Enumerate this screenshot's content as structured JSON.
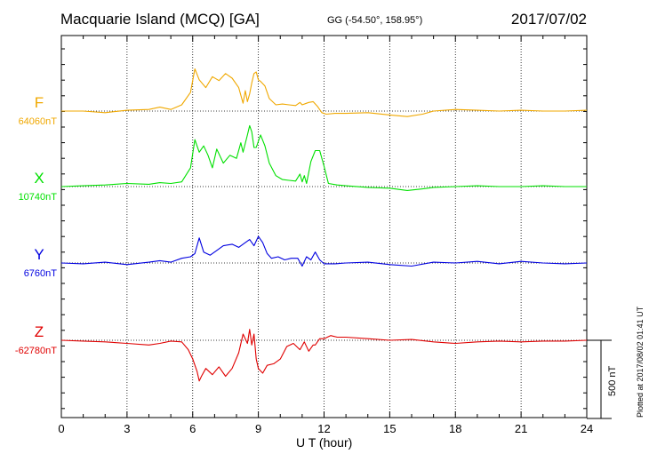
{
  "header": {
    "title": "Macquarie Island (MCQ)  [GA]",
    "coords": "GG (-54.50°, 158.95°)",
    "date": "2017/07/02"
  },
  "footer": {
    "plotted": "Plotted at 2017/08/02 01:41  UT",
    "scale_label": "500 nT"
  },
  "chart_data": {
    "type": "line",
    "xlabel": "U T (hour)",
    "xlim": [
      0,
      24
    ],
    "xticks": [
      "0",
      "3",
      "6",
      "9",
      "12",
      "15",
      "18",
      "21",
      "24"
    ],
    "grid": true,
    "series": [
      {
        "name": "F",
        "baseline": "64060nT",
        "color": "#F0A800",
        "x": [
          0,
          1,
          2,
          3,
          4,
          4.5,
          5,
          5.5,
          5.9,
          6.1,
          6.3,
          6.6,
          6.9,
          7.2,
          7.5,
          7.8,
          8.1,
          8.3,
          8.4,
          8.5,
          8.6,
          8.7,
          8.8,
          8.9,
          9.0,
          9.1,
          9.3,
          9.5,
          9.8,
          10.1,
          10.4,
          10.7,
          10.9,
          11.0,
          11.2,
          11.3,
          11.5,
          11.7,
          11.9,
          12.1,
          12.5,
          13,
          14,
          15,
          15.8,
          16.5,
          17,
          18,
          19,
          20,
          21,
          22,
          23,
          24
        ],
        "values": [
          0,
          0,
          -10,
          5,
          10,
          25,
          10,
          40,
          120,
          270,
          200,
          150,
          220,
          195,
          240,
          210,
          150,
          50,
          130,
          60,
          110,
          180,
          240,
          250,
          200,
          190,
          160,
          80,
          40,
          45,
          40,
          35,
          55,
          40,
          50,
          55,
          60,
          30,
          -10,
          -20,
          -15,
          -15,
          -10,
          -25,
          -35,
          -20,
          0,
          10,
          5,
          0,
          5,
          0,
          0,
          5
        ]
      },
      {
        "name": "X",
        "baseline": "10740nT",
        "color": "#00E000",
        "x": [
          0,
          1,
          2,
          3,
          4,
          4.5,
          5,
          5.5,
          5.9,
          6.1,
          6.3,
          6.5,
          6.7,
          6.9,
          7.1,
          7.4,
          7.7,
          8.0,
          8.2,
          8.3,
          8.5,
          8.6,
          8.7,
          8.8,
          8.9,
          9.0,
          9.1,
          9.3,
          9.5,
          9.8,
          10.1,
          10.4,
          10.7,
          10.9,
          11.0,
          11.1,
          11.2,
          11.4,
          11.6,
          11.8,
          12.0,
          12.2,
          12.6,
          13,
          14,
          15,
          15.8,
          16.5,
          17,
          18,
          19,
          20,
          21,
          22,
          23,
          24
        ],
        "values": [
          0,
          5,
          10,
          20,
          15,
          25,
          20,
          30,
          120,
          300,
          220,
          260,
          200,
          120,
          240,
          150,
          200,
          180,
          280,
          220,
          330,
          390,
          350,
          250,
          250,
          290,
          330,
          260,
          150,
          70,
          45,
          40,
          35,
          80,
          30,
          70,
          20,
          160,
          230,
          230,
          130,
          20,
          10,
          5,
          -5,
          -10,
          -25,
          -15,
          -5,
          0,
          5,
          0,
          0,
          5,
          0,
          0
        ]
      },
      {
        "name": "Y",
        "baseline": "6760nT",
        "color": "#0000E0",
        "x": [
          0,
          1,
          2,
          3,
          4,
          4.5,
          5,
          5.5,
          5.9,
          6.1,
          6.3,
          6.5,
          6.8,
          7.1,
          7.4,
          7.8,
          8.1,
          8.4,
          8.6,
          8.8,
          9.0,
          9.2,
          9.4,
          9.6,
          9.9,
          10.2,
          10.5,
          10.8,
          11.0,
          11.2,
          11.4,
          11.6,
          11.8,
          12.0,
          12.5,
          13,
          14,
          15,
          16,
          17,
          18,
          19,
          20,
          21,
          22,
          23,
          24
        ],
        "values": [
          0,
          -5,
          5,
          -10,
          5,
          15,
          5,
          30,
          40,
          60,
          160,
          70,
          50,
          80,
          110,
          120,
          100,
          130,
          150,
          110,
          170,
          130,
          60,
          30,
          40,
          20,
          30,
          30,
          -20,
          40,
          20,
          70,
          20,
          -5,
          -5,
          0,
          5,
          -10,
          -20,
          5,
          0,
          10,
          -5,
          10,
          0,
          -5,
          0
        ]
      },
      {
        "name": "Z",
        "baseline": "-62780nT",
        "color": "#E00000",
        "x": [
          0,
          1,
          2,
          3,
          4,
          4.5,
          5,
          5.5,
          5.8,
          6.0,
          6.2,
          6.3,
          6.4,
          6.6,
          6.9,
          7.2,
          7.5,
          7.8,
          8.1,
          8.3,
          8.5,
          8.6,
          8.7,
          8.8,
          8.9,
          9.0,
          9.2,
          9.4,
          9.7,
          10.0,
          10.3,
          10.6,
          10.9,
          11.1,
          11.3,
          11.5,
          11.6,
          11.8,
          12.0,
          12.3,
          12.6,
          13,
          14,
          15,
          16,
          17,
          18,
          19,
          20,
          21,
          22,
          23,
          24
        ],
        "values": [
          0,
          -5,
          -10,
          -20,
          -30,
          -20,
          -5,
          -10,
          -60,
          -120,
          -200,
          -260,
          -230,
          -180,
          -220,
          -170,
          -230,
          -180,
          -80,
          40,
          -20,
          70,
          -30,
          40,
          -120,
          -180,
          -210,
          -160,
          -150,
          -120,
          -40,
          -20,
          -60,
          -10,
          -70,
          -30,
          -30,
          10,
          10,
          30,
          20,
          20,
          10,
          0,
          5,
          -10,
          -20,
          -10,
          -5,
          -10,
          -5,
          -5,
          0
        ]
      }
    ]
  }
}
